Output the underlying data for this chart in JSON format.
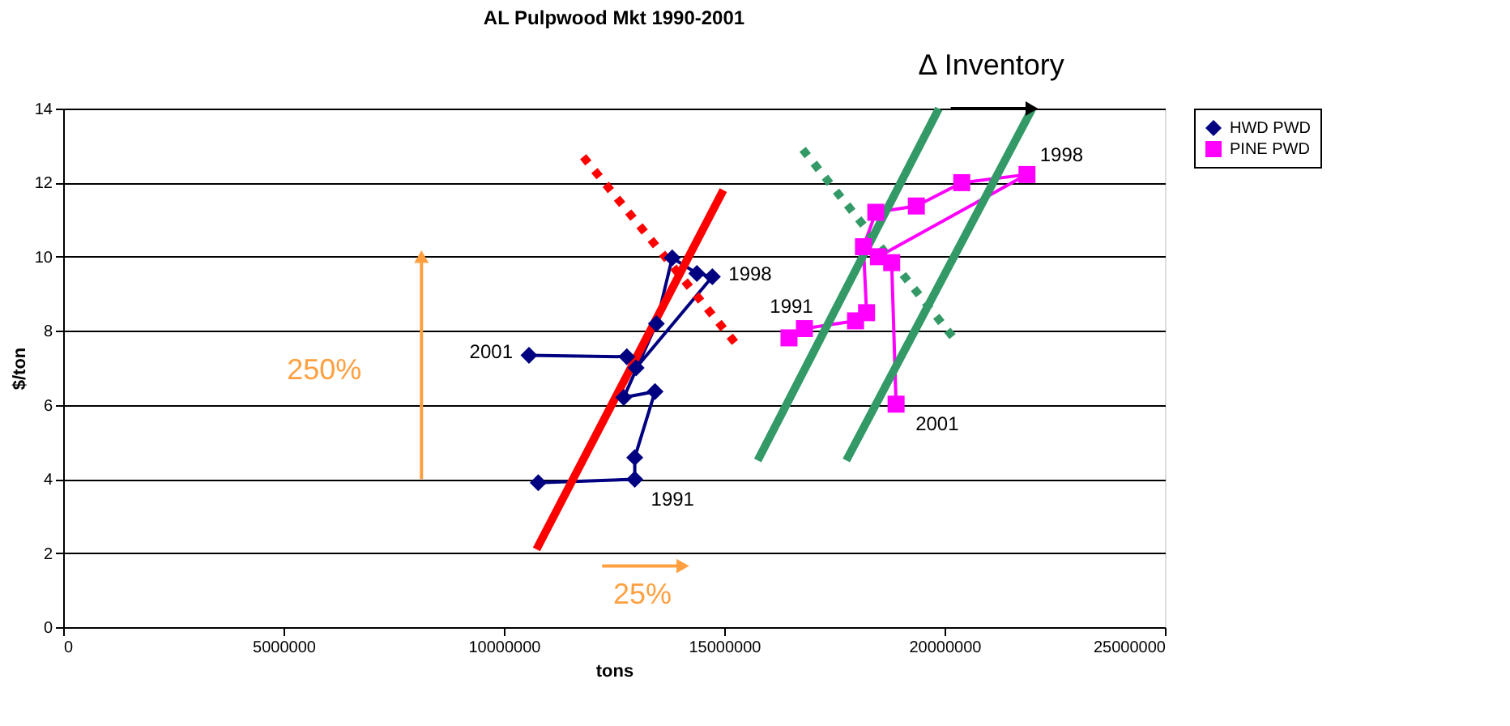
{
  "chart_data": {
    "type": "line",
    "title": "AL Pulpwood Mkt 1990-2001",
    "xlabel": "tons",
    "ylabel": "$/ton",
    "xlim": [
      0,
      25000000
    ],
    "xticks": [
      0,
      5000000,
      10000000,
      15000000,
      20000000,
      25000000
    ],
    "ylim": [
      0,
      14
    ],
    "yticks": [
      0,
      2,
      4,
      6,
      8,
      10,
      12,
      14
    ],
    "grid": "y",
    "legend": "right",
    "series": [
      {
        "name": "HWD PWD",
        "color": "#000080",
        "marker": "diamond",
        "line_style": "solid",
        "x": [
          10780000,
          12970000,
          12970000,
          13430000,
          12720000,
          13460000,
          13820000,
          14380000,
          14730000,
          13000000,
          12790000,
          10570000
        ],
        "values": [
          3.9,
          3.99,
          4.58,
          6.36,
          6.2,
          8.19,
          9.97,
          9.55,
          9.46,
          7.0,
          7.3,
          7.34
        ]
      },
      {
        "name": "PINE PWD",
        "color": "#ff00ff",
        "marker": "square",
        "line_style": "solid",
        "x": [
          16470000,
          16820000,
          17980000,
          18230000,
          18160000,
          18440000,
          19360000,
          20390000,
          21870000,
          18500000,
          18800000,
          18900000
        ],
        "values": [
          7.81,
          8.06,
          8.27,
          8.49,
          10.27,
          11.2,
          11.37,
          12.0,
          12.22,
          10.0,
          9.84,
          6.02
        ]
      },
      {
        "color": "#ff0000",
        "marker": "none",
        "line_style": "solid",
        "x": [
          10740000,
          14980000
        ],
        "values": [
          2.1,
          11.8
        ]
      },
      {
        "color": "#ff0000",
        "marker": "none",
        "line_style": "dotted",
        "x": [
          11800000,
          15370000
        ],
        "values": [
          12.7,
          7.5
        ]
      },
      {
        "color": "#339966",
        "marker": "none",
        "line_style": "dotted",
        "x": [
          16780000,
          20210000
        ],
        "values": [
          12.9,
          7.8
        ]
      },
      {
        "color": "#339966",
        "marker": "none",
        "line_style": "solid",
        "x": [
          15760000,
          19870000
        ],
        "values": [
          4.5,
          14
        ]
      },
      {
        "color": "#339966",
        "marker": "none",
        "line_style": "solid",
        "x": [
          17770000,
          21990000
        ],
        "values": [
          4.5,
          14
        ]
      },
      {
        "color": "#ffa040",
        "marker": "triangle",
        "line_style": "solid",
        "x": [
          8130000,
          8130000
        ],
        "values": [
          4,
          10
        ]
      },
      {
        "color": "#ffa040",
        "marker": "triangle",
        "line_style": "solid",
        "x": [
          12230000,
          14060000
        ],
        "values": [
          1.65,
          1.65
        ]
      },
      {
        "color": "#000000",
        "marker": "triangle",
        "line_style": "solid",
        "x": [
          20140000,
          21980000
        ],
        "values": [
          14,
          14
        ]
      }
    ],
    "annotations": [
      {
        "text": "1991",
        "x": 12970000,
        "y": 3.99
      },
      {
        "text": "1998",
        "x": 14730000,
        "y": 9.46
      },
      {
        "text": "2001",
        "x": 10570000,
        "y": 7.34
      },
      {
        "text": "1991",
        "x": 16820000,
        "y": 8.06
      },
      {
        "text": "1998",
        "x": 21870000,
        "y": 12.22
      },
      {
        "text": "2001",
        "x": 18900000,
        "y": 6.02
      },
      {
        "text": "250%",
        "x": 8130000,
        "y": 7
      },
      {
        "text": "25%",
        "x": 13145000,
        "y": 1.65
      },
      {
        "text": "Δ Inventory",
        "x": 21060000,
        "y": 14
      }
    ]
  }
}
